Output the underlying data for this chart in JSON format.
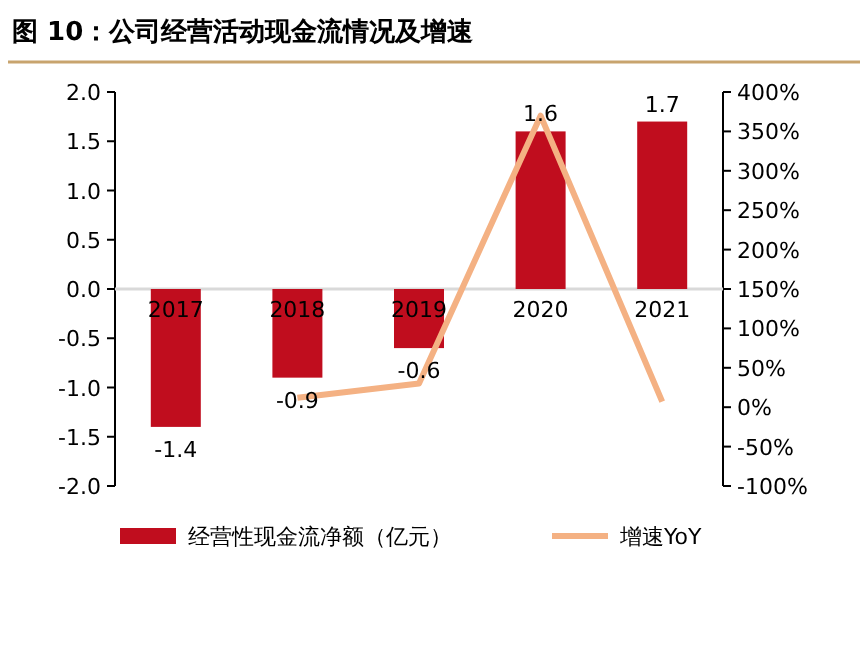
{
  "chart_data": {
    "type": "bar",
    "title": "图 10：公司经营活动现金流情况及增速",
    "categories": [
      "2017",
      "2018",
      "2019",
      "2020",
      "2021"
    ],
    "series": [
      {
        "name": "经营性现金流净额（亿元）",
        "color": "#c00d1e",
        "values": [
          -1.4,
          -0.9,
          -0.6,
          1.6,
          1.7
        ],
        "value_labels": [
          "-1.4",
          "-0.9",
          "-0.6",
          "1.6",
          "1.7"
        ]
      },
      {
        "name": "增速YoY",
        "type": "line",
        "axis": "y2",
        "color": "#f4b183",
        "values": [
          null,
          12,
          30,
          370,
          7
        ]
      }
    ],
    "ylim": [
      -2,
      2
    ],
    "yticks": [
      {
        "value": -2,
        "label": "-2.0"
      },
      {
        "value": -1.5,
        "label": "-1.5"
      },
      {
        "value": -1,
        "label": "-1.0"
      },
      {
        "value": -0.5,
        "label": "-0.5"
      },
      {
        "value": 0,
        "label": "0.0"
      },
      {
        "value": 0.5,
        "label": "0.5"
      },
      {
        "value": 1,
        "label": "1.0"
      },
      {
        "value": 1.5,
        "label": "1.5"
      },
      {
        "value": 2,
        "label": "2.0"
      }
    ],
    "y2lim": [
      -100,
      400
    ],
    "y2ticks": [
      {
        "value": -100,
        "label": "-100%"
      },
      {
        "value": -50,
        "label": "-50%"
      },
      {
        "value": 0,
        "label": "0%"
      },
      {
        "value": 50,
        "label": "50%"
      },
      {
        "value": 100,
        "label": "100%"
      },
      {
        "value": 150,
        "label": "150%"
      },
      {
        "value": 200,
        "label": "200%"
      },
      {
        "value": 250,
        "label": "250%"
      },
      {
        "value": 300,
        "label": "300%"
      },
      {
        "value": 350,
        "label": "350%"
      },
      {
        "value": 400,
        "label": "400%"
      }
    ],
    "legend": "bottom"
  }
}
